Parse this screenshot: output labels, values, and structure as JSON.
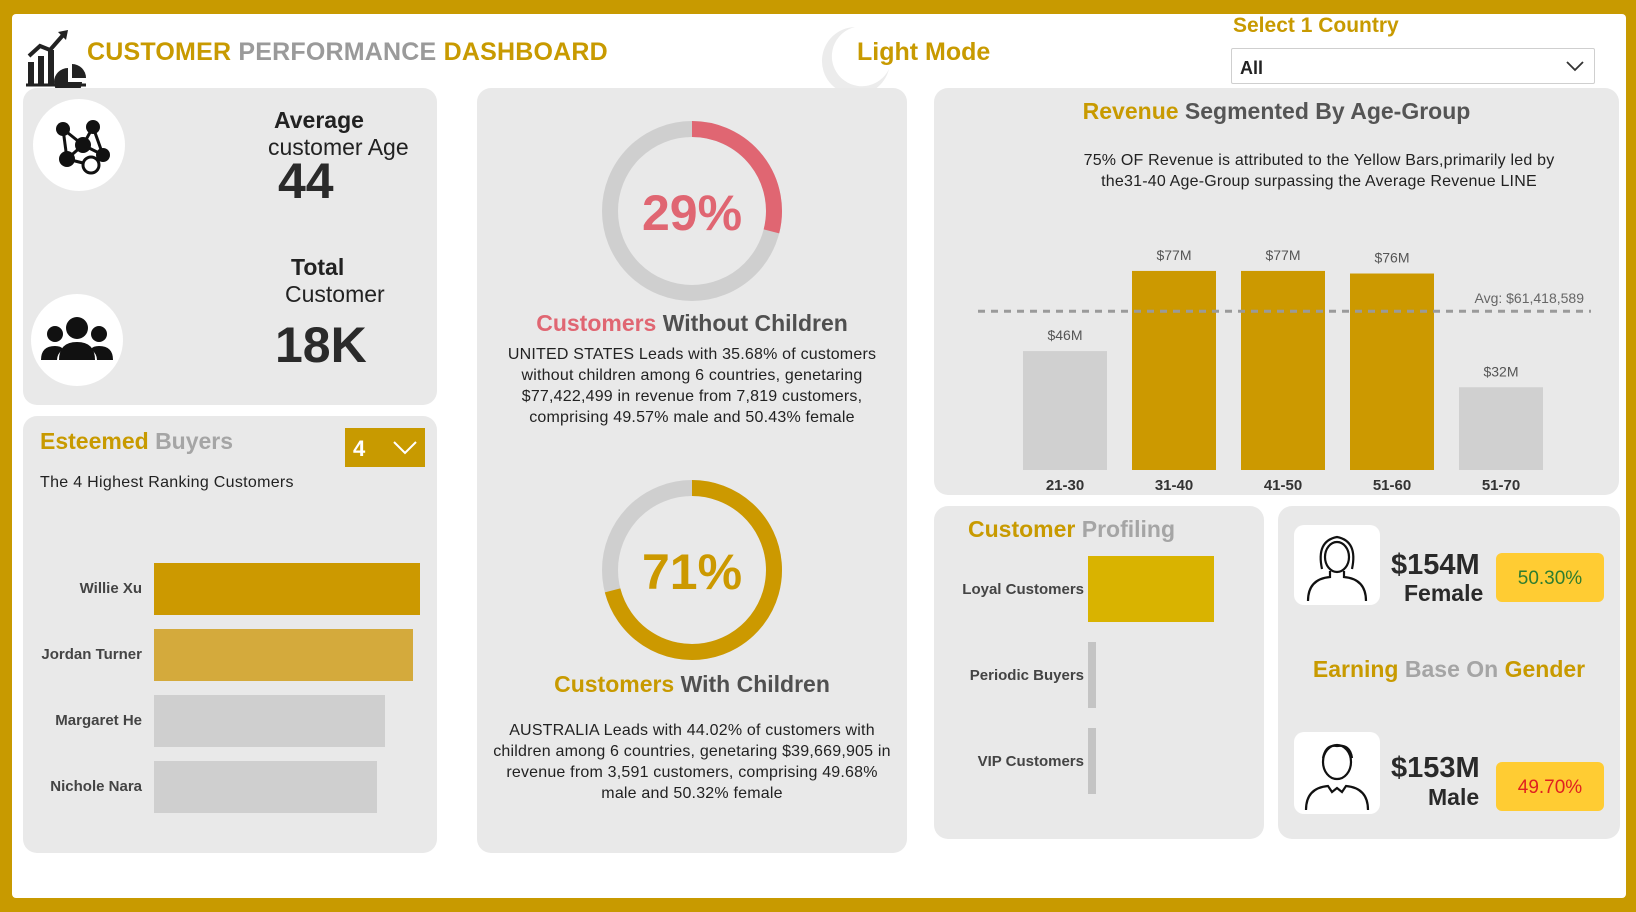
{
  "header": {
    "title_part1": "CUSTOMER",
    "title_part2": "PERFORMANCE",
    "title_part3": "DASHBOARD",
    "mode_label": "Light Mode",
    "country_label": "Select 1 Country",
    "country_value": "All"
  },
  "kpis": {
    "avg_age_label_bold": "Average",
    "avg_age_label": "customer Age",
    "avg_age_value": "44",
    "total_label_bold": "Total",
    "total_label": "Customer",
    "total_value": "18K"
  },
  "esteemed": {
    "title_gold": "Esteemed",
    "title_gray": "Buyers",
    "selected_count": "4",
    "subtitle": "The 4 Highest Ranking Customers",
    "buyers": [
      {
        "name": "Willie Xu",
        "value": 1.0,
        "color": "#cc9900"
      },
      {
        "name": "Jordan Turner",
        "value": 0.975,
        "color": "#d4aa3c"
      },
      {
        "name": "Margaret He",
        "value": 0.87,
        "color": "#cfcfcf"
      },
      {
        "name": "Nichole Nara",
        "value": 0.84,
        "color": "#cfcfcf"
      }
    ]
  },
  "children": {
    "without": {
      "percent": "29%",
      "fraction": 0.29,
      "color": "#e06672",
      "title_accent": "Customers",
      "title_rest": "Without Children",
      "text": "UNITED STATES Leads with 35.68% of customers without children among 6 countries, genetaring $77,422,499 in revenue from 7,819 customers, comprising 49.57% male and 50.43% female"
    },
    "with": {
      "percent": "71%",
      "fraction": 0.71,
      "color": "#cc9900",
      "title_accent": "Customers",
      "title_rest": "With Children",
      "text": "AUSTRALIA Leads with 44.02% of customers with children among 6 countries, genetaring $39,669,905 in revenue from 3,591 customers, comprising 49.68% male and 50.32% female"
    }
  },
  "revenue": {
    "title_gold": "Revenue",
    "title_rest": "Segmented By Age-Group",
    "note": "75% OF Revenue is attributed to the Yellow Bars,primarily led by the31-40 Age-Group surpassing the Average Revenue LINE"
  },
  "chart_data": {
    "type": "bar",
    "title": "Revenue Segmented By Age-Group",
    "categories": [
      "21-30",
      "31-40",
      "41-50",
      "51-60",
      "51-70"
    ],
    "values": [
      46,
      77,
      77,
      76,
      32
    ],
    "value_labels": [
      "$46M",
      "$77M",
      "$77M",
      "$76M",
      "$32M"
    ],
    "bar_colors": [
      "#d0d0d0",
      "#cc9900",
      "#cc9900",
      "#cc9900",
      "#d0d0d0"
    ],
    "average": 61.418589,
    "average_label": "Avg: $61,418,589",
    "ylim": [
      0,
      82
    ],
    "ylabel": "",
    "xlabel": "",
    "grid": false
  },
  "profiling": {
    "title_gold": "Customer",
    "title_gray": "Profiling",
    "segments": [
      {
        "name": "Loyal Customers",
        "value": 1.0,
        "color": "#d9b300"
      },
      {
        "name": "Periodic Buyers",
        "value": 0.06,
        "color": "#c4c4c4"
      },
      {
        "name": "VIP Customers",
        "value": 0.04,
        "color": "#c4c4c4"
      }
    ]
  },
  "gender": {
    "title_gold": "Earning",
    "title_gray": "Base On",
    "title_gold2": "Gender",
    "female": {
      "amount": "$154M",
      "label": "Female",
      "percent": "50.30%",
      "pct_color": "#2f7d2f"
    },
    "male": {
      "amount": "$153M",
      "label": "Male",
      "percent": "49.70%",
      "pct_color": "#e02020"
    }
  }
}
